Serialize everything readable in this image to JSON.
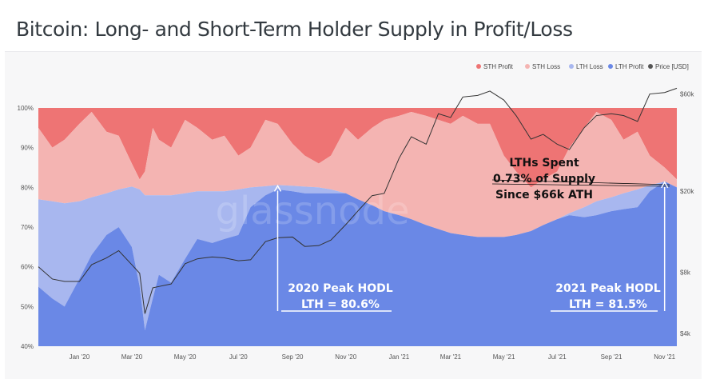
{
  "title": "Bitcoin: Long- and Short-Term Holder Supply in Profit/Loss",
  "watermark": "glassnode",
  "chart_data": {
    "type": "area",
    "title": "Bitcoin: Long- and Short-Term Holder Supply in Profit/Loss",
    "legend": [
      "STH Profit",
      "STH Loss",
      "LTH Loss",
      "LTH Profit",
      "Price [USD]"
    ],
    "colors": {
      "sth_profit": "#ee7474",
      "sth_loss": "#f4b4b2",
      "lth_loss": "#a8b7ef",
      "lth_profit": "#6a88e6",
      "price": "#333333",
      "background": "#f7f7f8"
    },
    "x_ticks": [
      "Jan '20",
      "Mar '20",
      "May '20",
      "Jul '20",
      "Sep '20",
      "Nov '20",
      "Jan '21",
      "Mar '21",
      "May '21",
      "Jul '21",
      "Sep '21",
      "Nov '21"
    ],
    "y_left_ticks": [
      "100%",
      "90%",
      "80%",
      "70%",
      "60%",
      "50%",
      "40%"
    ],
    "y_left_range": [
      40,
      100
    ],
    "y_right_ticks": [
      "$60k",
      "$20k",
      "$8k",
      "$4k"
    ],
    "y_right_values": [
      60000,
      20000,
      8000,
      4000
    ],
    "y_right_scale": "log",
    "dates": [
      "2019-11-15",
      "2019-12-01",
      "2019-12-15",
      "2020-01-01",
      "2020-01-15",
      "2020-02-01",
      "2020-02-15",
      "2020-03-01",
      "2020-03-10",
      "2020-03-16",
      "2020-03-25",
      "2020-04-01",
      "2020-04-15",
      "2020-05-01",
      "2020-05-15",
      "2020-06-01",
      "2020-06-15",
      "2020-07-01",
      "2020-07-15",
      "2020-08-01",
      "2020-08-15",
      "2020-09-01",
      "2020-09-15",
      "2020-10-01",
      "2020-10-15",
      "2020-11-01",
      "2020-11-15",
      "2020-12-01",
      "2020-12-15",
      "2021-01-01",
      "2021-01-15",
      "2021-02-01",
      "2021-02-15",
      "2021-03-01",
      "2021-03-15",
      "2021-04-01",
      "2021-04-15",
      "2021-05-01",
      "2021-05-15",
      "2021-06-01",
      "2021-06-15",
      "2021-07-01",
      "2021-07-15",
      "2021-08-01",
      "2021-08-15",
      "2021-09-01",
      "2021-09-15",
      "2021-10-01",
      "2021-10-15",
      "2021-11-01",
      "2021-11-15"
    ],
    "series": [
      {
        "name": "LTH Supply (LTH Profit + LTH Loss)",
        "unit": "%",
        "values": [
          77,
          76.5,
          76,
          76.5,
          77.5,
          78.5,
          79.5,
          80.2,
          79.5,
          78,
          78,
          78,
          78,
          78.5,
          79,
          79,
          79,
          79.5,
          80,
          80.3,
          80.6,
          80.4,
          80.2,
          80,
          79.5,
          78.5,
          77,
          75.5,
          74,
          73,
          72,
          70.5,
          69.5,
          68.5,
          68,
          67.5,
          67.5,
          67.5,
          68,
          69,
          70.5,
          72,
          73.5,
          75,
          76.5,
          77.5,
          78.5,
          79.5,
          80.5,
          81.5,
          80
        ]
      },
      {
        "name": "LTH Profit",
        "unit": "%",
        "values": [
          55,
          52,
          50,
          57,
          63,
          68,
          70,
          65,
          55,
          44,
          52,
          58,
          56,
          62,
          67,
          66,
          67,
          68,
          75,
          78,
          79.5,
          79,
          78.5,
          78.5,
          78.5,
          78.5,
          77,
          75.5,
          74,
          73,
          72,
          70.5,
          69.5,
          68.5,
          68,
          67.5,
          67.5,
          67.5,
          68,
          69,
          70.5,
          72,
          73,
          72.5,
          73,
          74,
          74.5,
          75,
          79,
          81.5,
          80
        ]
      },
      {
        "name": "STH Profit (top of STH Loss band)",
        "unit": "%",
        "values": [
          95,
          90,
          92,
          96,
          99,
          94,
          93,
          86,
          82,
          84,
          95,
          92,
          90,
          97,
          95,
          92,
          93,
          88,
          90,
          97,
          96,
          91,
          88,
          86,
          88,
          95,
          92,
          95,
          97,
          98,
          99,
          98,
          97,
          96,
          98,
          96,
          96,
          88,
          84,
          80,
          82,
          84,
          90,
          95,
          99,
          97,
          92,
          94,
          88,
          85,
          82
        ]
      },
      {
        "name": "Price [USD]",
        "unit": "USD",
        "values": [
          8500,
          7400,
          7200,
          7200,
          8700,
          9400,
          10200,
          8700,
          7900,
          5000,
          6700,
          6800,
          7000,
          8800,
          9300,
          9500,
          9400,
          9100,
          9200,
          11300,
          11800,
          11900,
          10700,
          10800,
          11500,
          13700,
          16000,
          19000,
          19500,
          29000,
          37000,
          34000,
          48000,
          46000,
          58000,
          59000,
          62000,
          56000,
          47000,
          36000,
          38000,
          34000,
          32000,
          41000,
          47000,
          48000,
          47000,
          44000,
          60000,
          61000,
          64000
        ]
      }
    ],
    "annotations": [
      {
        "lines": [
          "LTHs Spent",
          "0.73% of Supply",
          "Since $66k ATH"
        ],
        "color": "#111111"
      },
      {
        "lines": [
          "2020 Peak HODL",
          "LTH = 80.6%"
        ],
        "date": "2020-08-15",
        "value": 80.6,
        "color": "#ffffff"
      },
      {
        "lines": [
          "2021 Peak HODL",
          "LTH = 81.5%"
        ],
        "date": "2021-11-01",
        "value": 81.5,
        "color": "#ffffff"
      }
    ]
  }
}
